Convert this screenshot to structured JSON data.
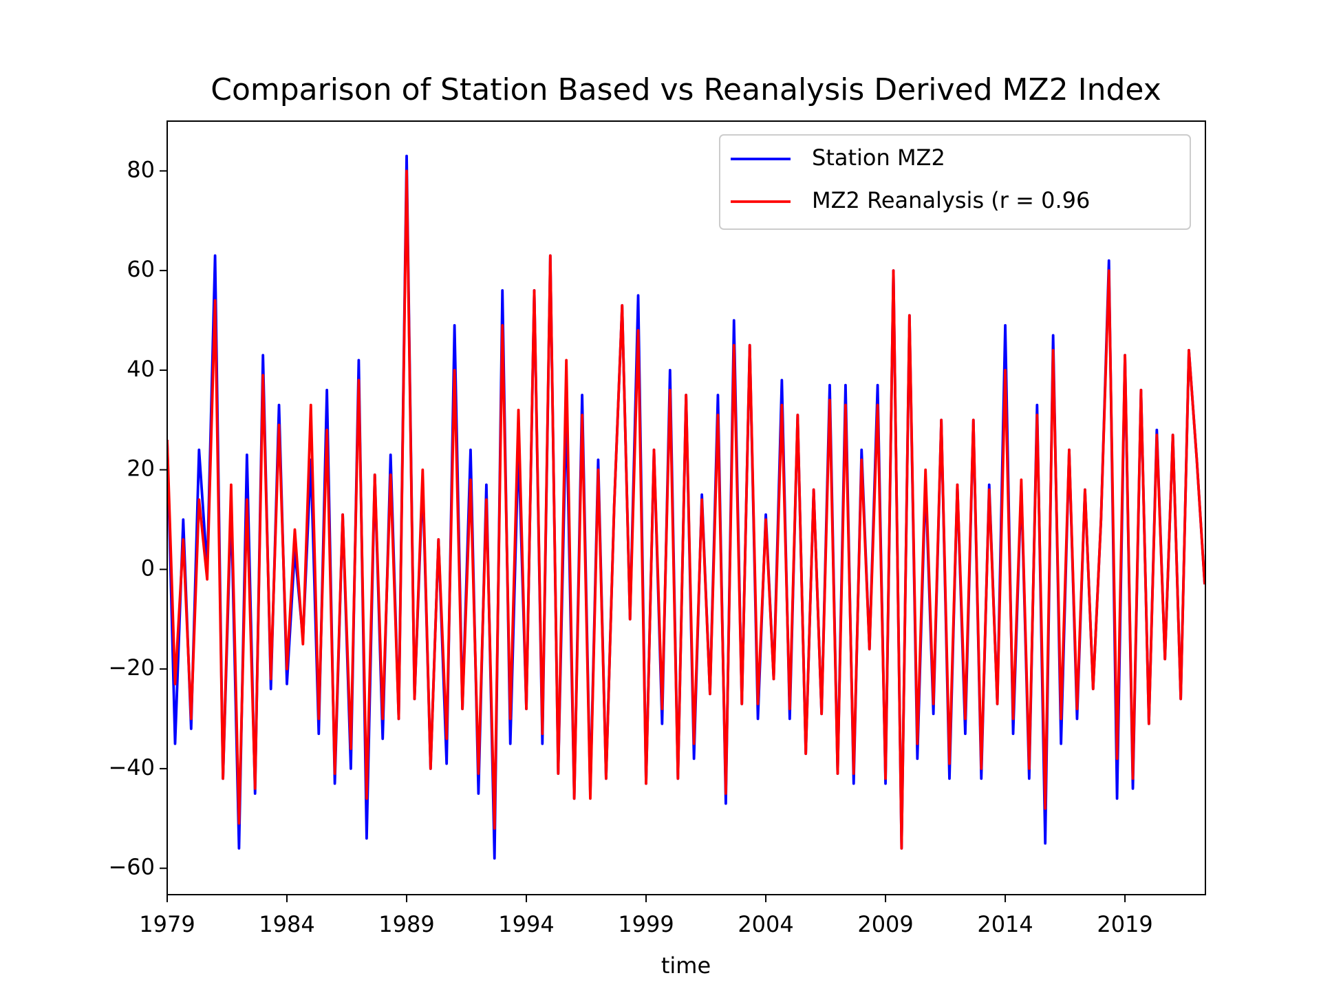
{
  "chart_data": {
    "type": "line",
    "title": "Comparison of Station Based vs Reanalysis Derived MZ2 Index",
    "xlabel": "time",
    "x": [
      1979,
      1979.33,
      1979.67,
      1980,
      1980.33,
      1980.67,
      1981,
      1981.33,
      1981.67,
      1982,
      1982.33,
      1982.67,
      1983,
      1983.33,
      1983.67,
      1984,
      1984.33,
      1984.67,
      1985,
      1985.33,
      1985.67,
      1986,
      1986.33,
      1986.67,
      1987,
      1987.33,
      1987.67,
      1988,
      1988.33,
      1988.67,
      1989,
      1989.33,
      1989.67,
      1990,
      1990.33,
      1990.67,
      1991,
      1991.33,
      1991.67,
      1992,
      1992.33,
      1992.67,
      1993,
      1993.33,
      1993.67,
      1994,
      1994.33,
      1994.67,
      1995,
      1995.33,
      1995.67,
      1996,
      1996.33,
      1996.67,
      1997,
      1997.33,
      1997.67,
      1998,
      1998.33,
      1998.67,
      1999,
      1999.33,
      1999.67,
      2000,
      2000.33,
      2000.67,
      2001,
      2001.33,
      2001.67,
      2002,
      2002.33,
      2002.67,
      2003,
      2003.33,
      2003.67,
      2004,
      2004.33,
      2004.67,
      2005,
      2005.33,
      2005.67,
      2006,
      2006.33,
      2006.67,
      2007,
      2007.33,
      2007.67,
      2008,
      2008.33,
      2008.67,
      2009,
      2009.33,
      2009.67,
      2010,
      2010.33,
      2010.67,
      2011,
      2011.33,
      2011.67,
      2012,
      2012.33,
      2012.67,
      2013,
      2013.33,
      2013.67,
      2014,
      2014.33,
      2014.67,
      2015,
      2015.33,
      2015.67,
      2016,
      2016.33,
      2016.67,
      2017,
      2017.33,
      2017.67,
      2018,
      2018.33,
      2018.67,
      2019,
      2019.33,
      2019.67,
      2020,
      2020.33,
      2020.67,
      2021,
      2021.33,
      2021.67,
      2022,
      2022.33
    ],
    "series": [
      {
        "name": "Station MZ2",
        "color": "#0000ff",
        "values": [
          26,
          -35,
          10,
          -32,
          24,
          0,
          63,
          -42,
          13,
          -56,
          23,
          -45,
          43,
          -24,
          33,
          -23,
          4,
          -14,
          22,
          -33,
          36,
          -43,
          11,
          -40,
          42,
          -54,
          19,
          -34,
          23,
          -30,
          83,
          -26,
          18,
          -40,
          6,
          -39,
          49,
          -28,
          24,
          -45,
          17,
          -58,
          56,
          -35,
          25,
          -28,
          56,
          -35,
          63,
          -41,
          33,
          -46,
          35,
          -45,
          22,
          -42,
          13,
          53,
          -10,
          55,
          -43,
          24,
          -31,
          40,
          -42,
          35,
          -38,
          15,
          -25,
          35,
          -47,
          50,
          -27,
          45,
          -30,
          11,
          -22,
          38,
          -30,
          31,
          -37,
          16,
          -29,
          37,
          -41,
          37,
          -43,
          24,
          -16,
          37,
          -43,
          60,
          -56,
          51,
          -38,
          18,
          -29,
          30,
          -42,
          17,
          -33,
          30,
          -42,
          17,
          -27,
          49,
          -33,
          17,
          -42,
          33,
          -55,
          47,
          -35,
          24,
          -30,
          16,
          -24,
          10,
          62,
          -46,
          43,
          -44,
          36,
          -31,
          28,
          -18,
          27,
          -26,
          44,
          22,
          -3
        ]
      },
      {
        "name": "MZ2 Reanalysis (r = 0.96",
        "color": "#ff0000",
        "values": [
          26,
          -23,
          6,
          -30,
          14,
          -2,
          54,
          -42,
          17,
          -51,
          14,
          -44,
          39,
          -22,
          29,
          -20,
          8,
          -15,
          33,
          -30,
          28,
          -41,
          11,
          -36,
          38,
          -46,
          19,
          -30,
          19,
          -30,
          80,
          -26,
          20,
          -40,
          6,
          -34,
          40,
          -28,
          18,
          -41,
          14,
          -52,
          49,
          -30,
          32,
          -28,
          56,
          -33,
          63,
          -41,
          42,
          -46,
          31,
          -46,
          20,
          -42,
          13,
          53,
          -10,
          48,
          -43,
          24,
          -28,
          36,
          -42,
          35,
          -35,
          14,
          -25,
          31,
          -45,
          45,
          -27,
          45,
          -27,
          10,
          -22,
          33,
          -28,
          31,
          -37,
          16,
          -29,
          34,
          -41,
          33,
          -41,
          22,
          -16,
          33,
          -42,
          60,
          -56,
          51,
          -35,
          20,
          -27,
          30,
          -39,
          17,
          -30,
          30,
          -40,
          16,
          -27,
          40,
          -30,
          18,
          -40,
          31,
          -48,
          44,
          -30,
          24,
          -28,
          16,
          -24,
          10,
          60,
          -38,
          43,
          -42,
          36,
          -31,
          27,
          -18,
          27,
          -26,
          44,
          22,
          -3
        ]
      }
    ],
    "xlim": [
      1979,
      2022.36
    ],
    "ylim": [
      -65.3,
      90
    ],
    "xticks": [
      1979,
      1984,
      1989,
      1994,
      1999,
      2004,
      2009,
      2014,
      2019
    ],
    "yticks": [
      {
        "value": -60,
        "label": "−60"
      },
      {
        "value": -40,
        "label": "−40"
      },
      {
        "value": -20,
        "label": "−20"
      },
      0,
      20,
      40,
      60,
      80
    ],
    "legend": "upper right",
    "grid": false
  }
}
